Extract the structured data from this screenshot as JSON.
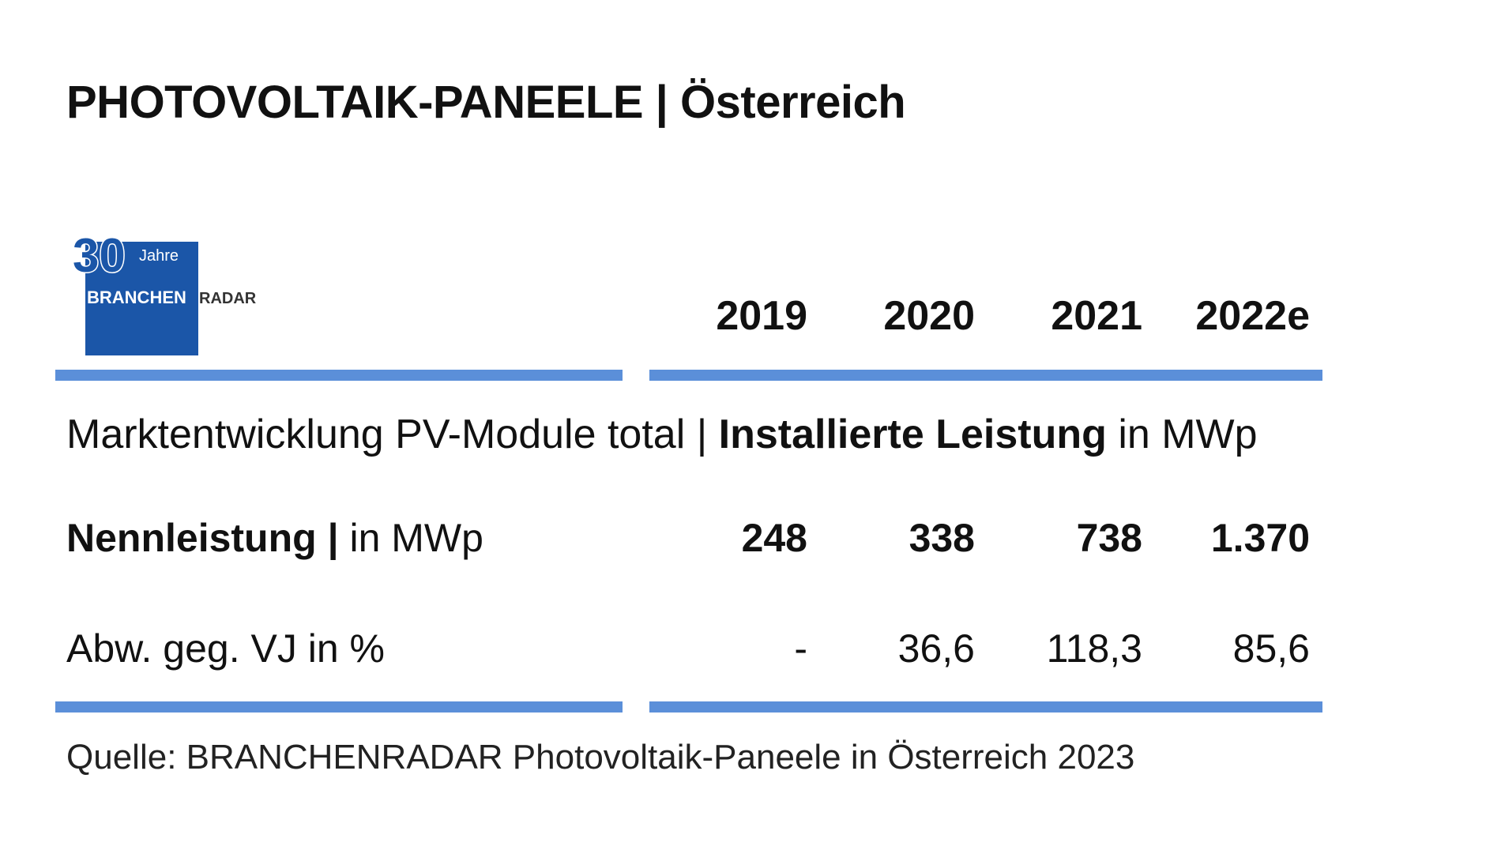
{
  "title": "PHOTOVOLTAIK-PANEELE | Österreich",
  "logo": {
    "number": "30",
    "jahre": "Jahre",
    "brand_a": "BRANCHEN",
    "brand_b": "RADAR",
    "color": "#1b56a8"
  },
  "accent_color": "#5b8fd9",
  "subtitle": {
    "part1": "Marktentwicklung PV-Module total | ",
    "part2": "Installierte Leistung",
    "part3": " in MWp"
  },
  "source": "Quelle: BRANCHENRADAR Photovoltaik-Paneele in Österreich 2023",
  "chart_data": {
    "type": "table",
    "columns": [
      "2019",
      "2020",
      "2021",
      "2022e"
    ],
    "rows": [
      {
        "label_bold": "Nennleistung |",
        "label_rest": " in MWp",
        "cells": [
          "248",
          "338",
          "738",
          "1.370"
        ],
        "values": [
          248,
          338,
          738,
          1370
        ]
      },
      {
        "label_bold": "",
        "label_rest": "Abw. geg. VJ in %",
        "cells": [
          "-",
          "36,6",
          "118,3",
          "85,6"
        ],
        "values": [
          null,
          36.6,
          118.3,
          85.6
        ]
      }
    ]
  }
}
